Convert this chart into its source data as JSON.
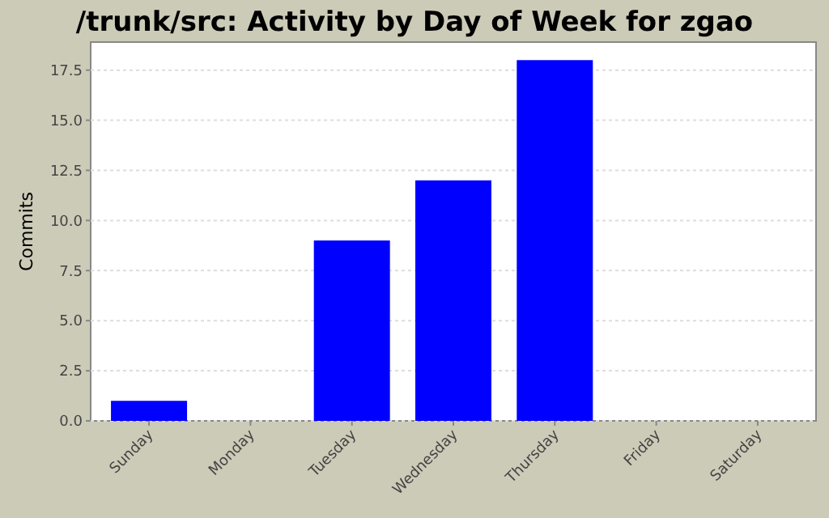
{
  "chart_data": {
    "type": "bar",
    "title": "/trunk/src: Activity by Day of Week for zgao",
    "ylabel": "Commits",
    "categories": [
      "Sunday",
      "Monday",
      "Tuesday",
      "Wednesday",
      "Thursday",
      "Friday",
      "Saturday"
    ],
    "values": [
      1,
      0,
      9,
      12,
      18,
      0,
      0
    ],
    "color": "#0000ff",
    "ylim": [
      0,
      18.9
    ],
    "yticks": [
      {
        "value": 0,
        "label": "0.0"
      },
      {
        "value": 2.5,
        "label": "2.5"
      },
      {
        "value": 5,
        "label": "5.0"
      },
      {
        "value": 7.5,
        "label": "7.5"
      },
      {
        "value": 10,
        "label": "10.0"
      },
      {
        "value": 12.5,
        "label": "12.5"
      },
      {
        "value": 15,
        "label": "15.0"
      },
      {
        "value": 17.5,
        "label": "17.5"
      }
    ],
    "grid": "y"
  }
}
